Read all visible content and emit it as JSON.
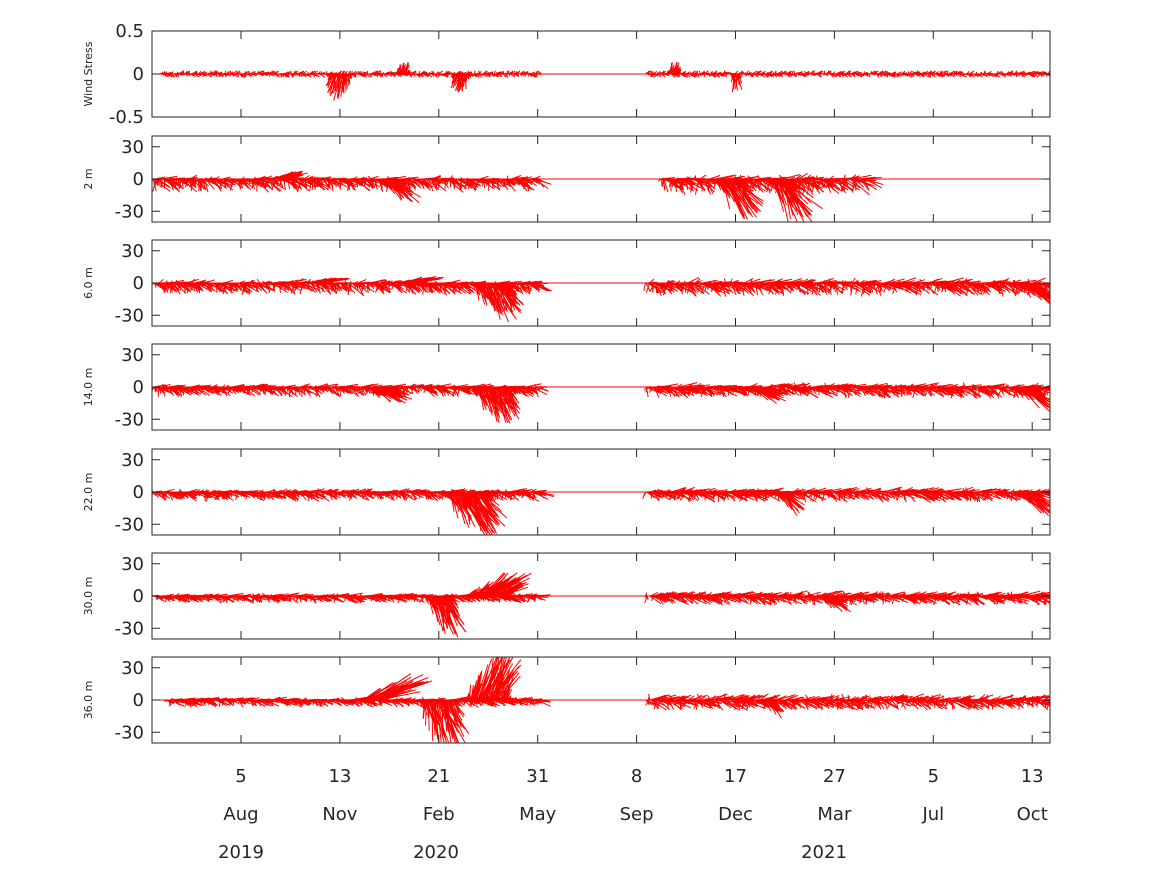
{
  "chart_data": {
    "type": "line",
    "subtype": "stick-vector-stacked",
    "colors": {
      "sticks": "#ff0000",
      "axes": "#262626",
      "background": "#ffffff"
    },
    "x_axis": {
      "day_ticks": [
        "5",
        "13",
        "21",
        "31",
        "8",
        "17",
        "27",
        "5",
        "13"
      ],
      "month_ticks": [
        "Aug",
        "Nov",
        "Feb",
        "May",
        "Sep",
        "Dec",
        "Mar",
        "Jul",
        "Oct"
      ],
      "year_ticks": [
        "2019",
        "2020",
        "2021"
      ],
      "tick_dates": [
        "2019-08-05",
        "2019-11-13",
        "2020-02-21",
        "2020-05-31",
        "2020-09-08",
        "2020-12-17",
        "2021-03-27",
        "2021-07-05",
        "2021-10-13"
      ],
      "range": [
        "2019-05-07",
        "2021-10-31"
      ]
    },
    "data_gap": [
      "2020-06-01",
      "2020-09-17"
    ],
    "panels": [
      {
        "label": "Wind Stress",
        "ylim": [
          -0.5,
          0.5
        ],
        "yticks": [
          "0.5",
          "0",
          "-0.5"
        ],
        "series_a": {
          "start": "2019-05-15",
          "end": "2020-05-31",
          "u_amp": 0.05,
          "v_amp": 0.04,
          "v_bias": 0.0
        },
        "series_b": {
          "start": "2020-09-17",
          "end": "2021-10-31",
          "u_amp": 0.05,
          "v_amp": 0.04,
          "v_bias": 0.0
        },
        "bursts": [
          {
            "date": "2019-11-13",
            "days": 25,
            "u": -0.06,
            "v": -0.25
          },
          {
            "date": "2020-01-15",
            "days": 15,
            "u": 0.05,
            "v": 0.12
          },
          {
            "date": "2020-03-15",
            "days": 20,
            "u": -0.05,
            "v": -0.18
          },
          {
            "date": "2020-10-15",
            "days": 15,
            "u": 0.05,
            "v": 0.12
          },
          {
            "date": "2020-12-17",
            "days": 10,
            "u": 0.02,
            "v": -0.18
          }
        ]
      },
      {
        "label": "2 m",
        "ylim": [
          -40,
          40
        ],
        "yticks": [
          "30",
          "0",
          "-30"
        ],
        "series_a": {
          "start": "2019-05-07",
          "end": "2020-05-31",
          "u_amp": 12,
          "v_amp": 6,
          "v_bias": -7
        },
        "series_b": {
          "start": "2020-10-01",
          "end": "2021-04-27",
          "u_amp": 14,
          "v_amp": 8,
          "v_bias": -8
        },
        "bursts": [
          {
            "date": "2019-09-15",
            "days": 25,
            "u": 22,
            "v": 6
          },
          {
            "date": "2020-01-01",
            "days": 25,
            "u": 28,
            "v": -18
          },
          {
            "date": "2020-12-10",
            "days": 30,
            "u": 28,
            "v": -30
          },
          {
            "date": "2021-02-01",
            "days": 25,
            "u": 30,
            "v": -38
          }
        ]
      },
      {
        "label": "6.0 m",
        "ylim": [
          -40,
          40
        ],
        "yticks": [
          "30",
          "0",
          "-30"
        ],
        "series_a": {
          "start": "2019-05-07",
          "end": "2020-05-31",
          "u_amp": 12,
          "v_amp": 6,
          "v_bias": -6
        },
        "series_b": {
          "start": "2020-09-17",
          "end": "2021-10-31",
          "u_amp": 14,
          "v_amp": 7,
          "v_bias": -6
        },
        "bursts": [
          {
            "date": "2019-10-20",
            "days": 25,
            "u": 30,
            "v": 4
          },
          {
            "date": "2020-01-20",
            "days": 25,
            "u": 35,
            "v": 5
          },
          {
            "date": "2020-04-15",
            "days": 45,
            "u": 20,
            "v": -28
          },
          {
            "date": "2021-10-05",
            "days": 20,
            "u": 35,
            "v": -18
          }
        ]
      },
      {
        "label": "14.0 m",
        "ylim": [
          -40,
          40
        ],
        "yticks": [
          "30",
          "0",
          "-30"
        ],
        "series_a": {
          "start": "2019-05-07",
          "end": "2020-05-31",
          "u_amp": 12,
          "v_amp": 5,
          "v_bias": -5
        },
        "series_b": {
          "start": "2020-09-17",
          "end": "2021-10-31",
          "u_amp": 14,
          "v_amp": 6,
          "v_bias": -5
        },
        "bursts": [
          {
            "date": "2019-12-20",
            "days": 30,
            "u": 30,
            "v": -12
          },
          {
            "date": "2020-04-15",
            "days": 45,
            "u": 18,
            "v": -28
          },
          {
            "date": "2021-01-05",
            "days": 20,
            "u": 28,
            "v": -12
          },
          {
            "date": "2021-10-05",
            "days": 20,
            "u": 35,
            "v": -20
          }
        ]
      },
      {
        "label": "22.0 m",
        "ylim": [
          -40,
          40
        ],
        "yticks": [
          "30",
          "0",
          "-30"
        ],
        "series_a": {
          "start": "2019-05-07",
          "end": "2020-05-31",
          "u_amp": 12,
          "v_amp": 5,
          "v_bias": -4
        },
        "series_b": {
          "start": "2020-09-17",
          "end": "2021-10-31",
          "u_amp": 14,
          "v_amp": 6,
          "v_bias": -4
        },
        "bursts": [
          {
            "date": "2020-03-20",
            "days": 50,
            "u": 28,
            "v": -35
          },
          {
            "date": "2021-02-01",
            "days": 15,
            "u": 25,
            "v": -18
          },
          {
            "date": "2021-10-05",
            "days": 20,
            "u": 35,
            "v": -20
          }
        ]
      },
      {
        "label": "30.0 m",
        "ylim": [
          -40,
          40
        ],
        "yticks": [
          "30",
          "0",
          "-30"
        ],
        "series_a": {
          "start": "2019-05-07",
          "end": "2020-05-31",
          "u_amp": 12,
          "v_amp": 4,
          "v_bias": -3
        },
        "series_b": {
          "start": "2020-09-17",
          "end": "2021-10-31",
          "u_amp": 14,
          "v_amp": 6,
          "v_bias": -3
        },
        "bursts": [
          {
            "date": "2020-02-21",
            "days": 30,
            "u": 18,
            "v": -32
          },
          {
            "date": "2020-04-10",
            "days": 45,
            "u": 40,
            "v": 18
          },
          {
            "date": "2021-03-20",
            "days": 20,
            "u": 22,
            "v": -12
          }
        ]
      },
      {
        "label": "36.0 m",
        "ylim": [
          -40,
          40
        ],
        "yticks": [
          "30",
          "0",
          "-30"
        ],
        "series_a": {
          "start": "2019-05-20",
          "end": "2020-05-31",
          "u_amp": 12,
          "v_amp": 4,
          "v_bias": -3
        },
        "series_b": {
          "start": "2020-09-17",
          "end": "2021-10-31",
          "u_amp": 14,
          "v_amp": 7,
          "v_bias": -3
        },
        "bursts": [
          {
            "date": "2019-12-15",
            "days": 25,
            "u": 60,
            "v": 20
          },
          {
            "date": "2020-02-21",
            "days": 40,
            "u": 15,
            "v": -38
          },
          {
            "date": "2020-04-10",
            "days": 45,
            "u": 20,
            "v": 38
          },
          {
            "date": "2021-01-20",
            "days": 15,
            "u": 15,
            "v": -14
          }
        ]
      }
    ]
  }
}
